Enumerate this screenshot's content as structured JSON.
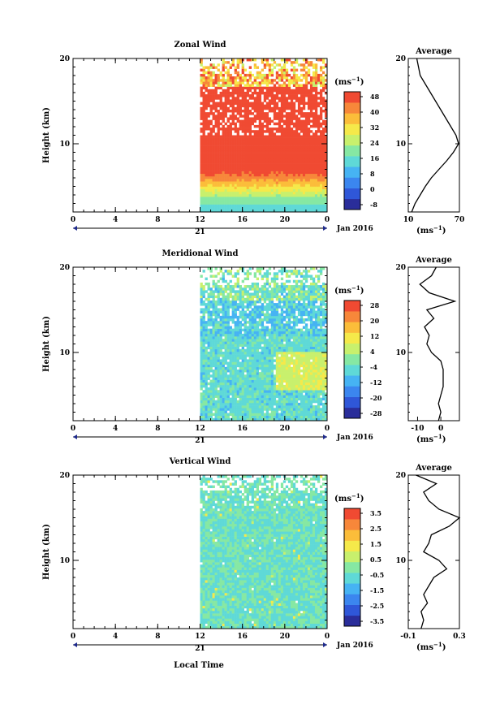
{
  "figure": {
    "xlabel": "Local Time",
    "date_label": "Jan 2016",
    "day_label": "21",
    "height_label": "Height (km)",
    "unit_label": "(ms",
    "unit_exp": "−1",
    "unit_close": ")",
    "average_title": "Average"
  },
  "chart_data": [
    {
      "type": "heatmap",
      "title": "Zonal Wind",
      "xlabel": "Local Time",
      "ylabel": "Height (km)",
      "x_ticks": [
        "0",
        "4",
        "8",
        "12",
        "16",
        "20",
        "0"
      ],
      "y_ticks": [
        "20",
        "10"
      ],
      "xlim": [
        0,
        24
      ],
      "ylim": [
        2,
        20
      ],
      "data_start_hour": 12,
      "colorbar": {
        "unit": "(ms−1)",
        "ticks": [
          "48",
          "40",
          "32",
          "24",
          "16",
          "8",
          "0",
          "-8"
        ],
        "colors": [
          "#2a2d9a",
          "#2f57d8",
          "#3b86ef",
          "#46b3f3",
          "#5fd9d7",
          "#86e8a3",
          "#c8f06d",
          "#f5e94a",
          "#fbbd3a",
          "#f7873a",
          "#f04a32"
        ]
      },
      "profile": {
        "title": "Average",
        "xlabel": "(ms−1)",
        "x_ticks": [
          "10",
          "70"
        ],
        "xlim": [
          10,
          70
        ],
        "heights": [
          2,
          3,
          4,
          5,
          6,
          7,
          8,
          9,
          10,
          11,
          12,
          13,
          14,
          15,
          16,
          17,
          18,
          19,
          20
        ],
        "values": [
          14,
          18,
          24,
          30,
          37,
          46,
          55,
          63,
          69,
          66,
          60,
          54,
          48,
          42,
          36,
          30,
          24,
          22,
          20
        ]
      }
    },
    {
      "type": "heatmap",
      "title": "Meridional Wind",
      "xlabel": "Local Time",
      "ylabel": "Height (km)",
      "x_ticks": [
        "0",
        "4",
        "8",
        "12",
        "16",
        "20",
        "0"
      ],
      "y_ticks": [
        "20",
        "10"
      ],
      "xlim": [
        0,
        24
      ],
      "ylim": [
        2,
        20
      ],
      "data_start_hour": 12,
      "colorbar": {
        "unit": "(ms−1)",
        "ticks": [
          "28",
          "20",
          "12",
          "4",
          "-4",
          "-12",
          "-20",
          "-28"
        ],
        "colors": [
          "#2a2d9a",
          "#2f57d8",
          "#3b86ef",
          "#46b3f3",
          "#5fd9d7",
          "#86e8a3",
          "#c8f06d",
          "#f5e94a",
          "#fbbd3a",
          "#f7873a",
          "#f04a32"
        ]
      },
      "profile": {
        "title": "Average",
        "xlabel": "(ms−1)",
        "x_ticks": [
          "-10",
          "0"
        ],
        "xlim": [
          -14,
          8
        ],
        "heights": [
          2,
          3,
          4,
          5,
          6,
          7,
          8,
          9,
          10,
          11,
          12,
          13,
          14,
          15,
          16,
          17,
          18,
          19,
          20
        ],
        "values": [
          -1,
          0,
          -1,
          0,
          1,
          1,
          1,
          0,
          -4,
          -6,
          -5,
          -7,
          -3,
          -6,
          6,
          -5,
          -9,
          -4,
          -2
        ]
      }
    },
    {
      "type": "heatmap",
      "title": "Vertical Wind",
      "xlabel": "Local Time",
      "ylabel": "Height (km)",
      "x_ticks": [
        "0",
        "4",
        "8",
        "12",
        "16",
        "20",
        "0"
      ],
      "y_ticks": [
        "20",
        "10"
      ],
      "xlim": [
        0,
        24
      ],
      "ylim": [
        2,
        20
      ],
      "data_start_hour": 12,
      "colorbar": {
        "unit": "(ms−1)",
        "ticks": [
          "3.5",
          "2.5",
          "1.5",
          "0.5",
          "-0.5",
          "-1.5",
          "-2.5",
          "-3.5"
        ],
        "colors": [
          "#2a2d9a",
          "#2f57d8",
          "#3b86ef",
          "#46b3f3",
          "#5fd9d7",
          "#86e8a3",
          "#c8f06d",
          "#f5e94a",
          "#fbbd3a",
          "#f7873a",
          "#f04a32"
        ]
      },
      "profile": {
        "title": "Average",
        "xlabel": "(ms−1)",
        "x_ticks": [
          "-0.1",
          "0.3"
        ],
        "xlim": [
          -0.1,
          0.3
        ],
        "heights": [
          2,
          3,
          4,
          5,
          6,
          7,
          8,
          9,
          10,
          11,
          12,
          13,
          14,
          15,
          16,
          17,
          18,
          19,
          20
        ],
        "values": [
          0.0,
          0.02,
          0.0,
          0.05,
          0.02,
          0.06,
          0.1,
          0.2,
          0.14,
          0.02,
          0.06,
          0.08,
          0.22,
          0.3,
          0.14,
          0.06,
          0.02,
          0.12,
          -0.04
        ]
      }
    }
  ]
}
